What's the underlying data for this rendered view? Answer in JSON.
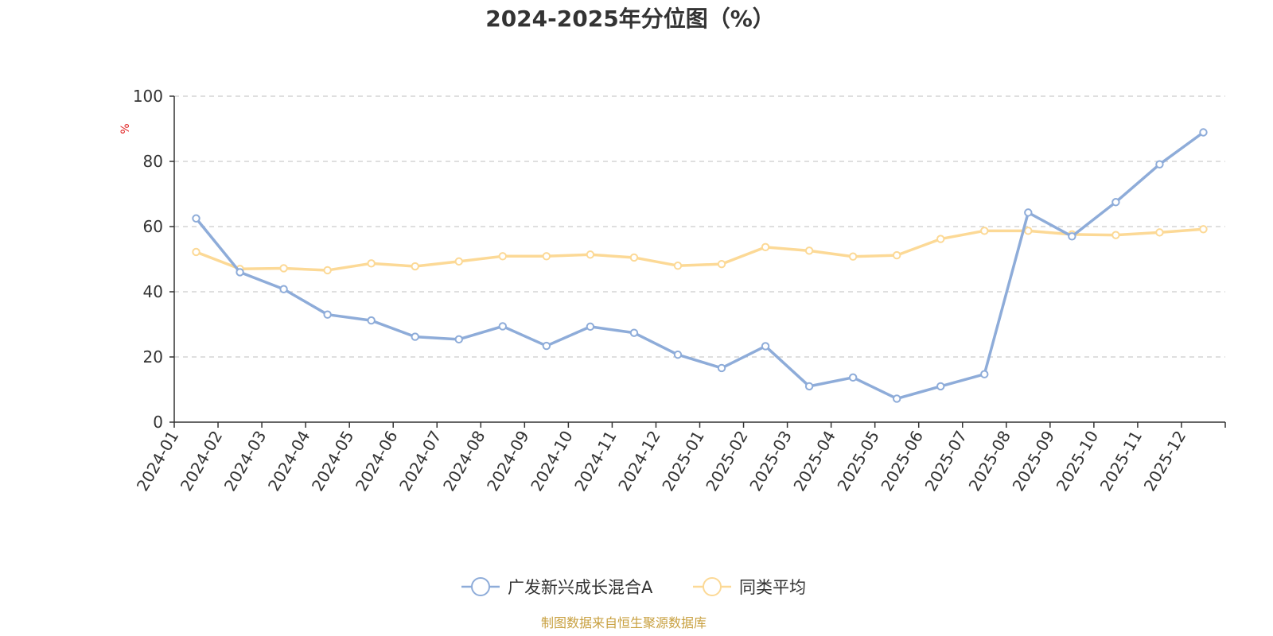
{
  "chart_data": {
    "type": "line",
    "title": "2024-2025年分位图（%）",
    "ylabel": "%",
    "ylim": [
      0,
      100
    ],
    "yticks": [
      "0",
      "20",
      "40",
      "60",
      "80",
      "100"
    ],
    "grid": true,
    "legend_placement": "bottom-center",
    "categories": [
      "2024-01",
      "2024-02",
      "2024-03",
      "2024-04",
      "2024-05",
      "2024-06",
      "2024-07",
      "2024-08",
      "2024-09",
      "2024-10",
      "2024-11",
      "2024-12",
      "2025-01",
      "2025-02",
      "2025-03",
      "2025-04",
      "2025-05",
      "2025-06",
      "2025-07",
      "2025-08",
      "2025-09",
      "2025-10",
      "2025-11",
      "2025-12"
    ],
    "series": [
      {
        "name": "广发新兴成长混合A",
        "color": "#8eacd9",
        "values": [
          62.5,
          46.0,
          40.8,
          33.0,
          31.2,
          26.2,
          25.4,
          29.4,
          23.4,
          29.3,
          27.4,
          20.7,
          16.6,
          23.3,
          11.0,
          13.7,
          7.2,
          11.0,
          14.7,
          64.3,
          57.0,
          67.5,
          79.1,
          88.9
        ]
      },
      {
        "name": "同类平均",
        "color": "#fcd996",
        "values": [
          52.2,
          47.0,
          47.2,
          46.6,
          48.7,
          47.8,
          49.3,
          50.9,
          50.9,
          51.4,
          50.5,
          48.0,
          48.5,
          53.7,
          52.6,
          50.8,
          51.2,
          56.2,
          58.7,
          58.7,
          57.6,
          57.4,
          58.2,
          59.2
        ]
      }
    ],
    "source_note": "制图数据来自恒生聚源数据库",
    "colors": {
      "axis": "#333333",
      "grid": "#cccccc",
      "unit": "#e02020",
      "source": "#c8a040"
    }
  }
}
